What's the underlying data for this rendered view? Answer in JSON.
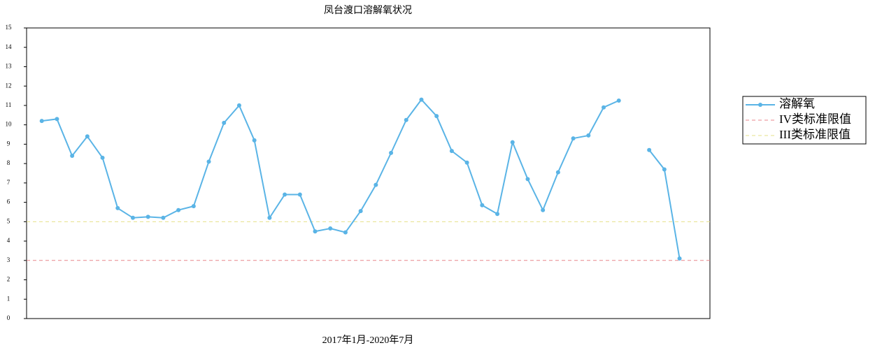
{
  "chart_data": {
    "type": "line",
    "title": "凤台渡口溶解氧状况",
    "x_label": "2017年1月-2020年7月",
    "series": [
      {
        "name": "溶解氧",
        "color": "#5ab4e6",
        "values": [
          10.2,
          10.3,
          8.4,
          9.4,
          8.3,
          5.7,
          5.2,
          5.25,
          5.2,
          5.6,
          5.8,
          8.1,
          10.1,
          11.0,
          9.2,
          5.2,
          6.4,
          6.4,
          4.5,
          4.65,
          4.45,
          5.55,
          6.9,
          8.55,
          10.25,
          11.3,
          10.45,
          8.65,
          8.05,
          5.85,
          5.4,
          9.1,
          7.2,
          5.6,
          7.55,
          9.3,
          9.45,
          10.9,
          11.25,
          null,
          8.7,
          7.7,
          3.1
        ]
      }
    ],
    "reference_lines": [
      {
        "name": "IV类标准限值",
        "value": 3,
        "color": "#e8868c"
      },
      {
        "name": "III类标准限值",
        "value": 5,
        "color": "#e6e08a"
      }
    ],
    "ylim": [
      0,
      15
    ],
    "yticks": [
      0,
      1,
      2,
      3,
      4,
      5,
      6,
      7,
      8,
      9,
      10,
      11,
      12,
      13,
      14,
      15
    ],
    "legend": "right"
  }
}
